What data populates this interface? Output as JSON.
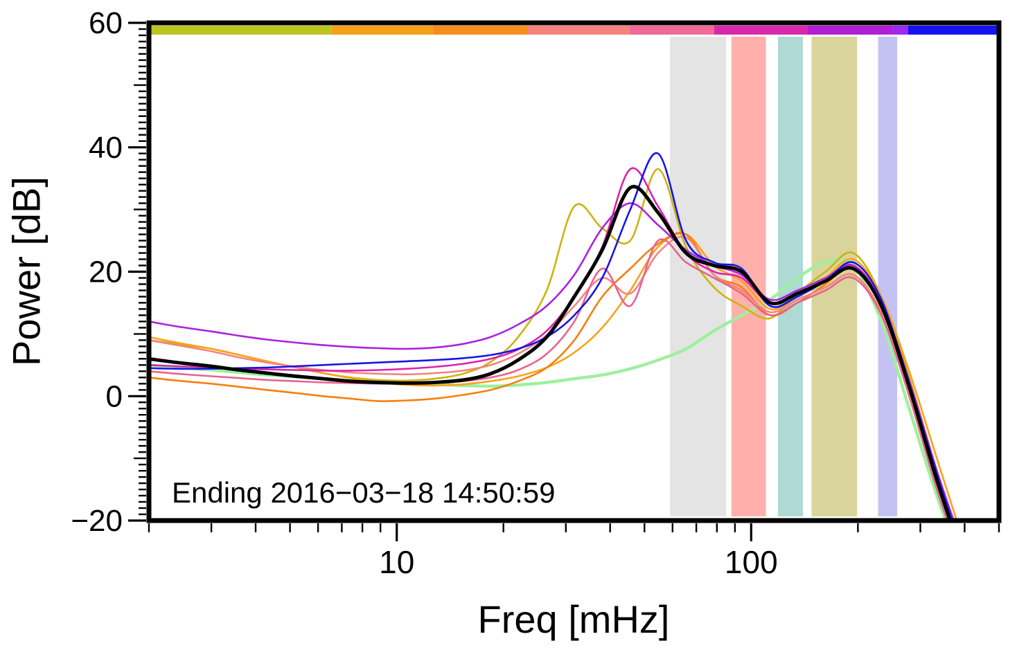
{
  "chart_data": {
    "type": "line",
    "title": "",
    "xlabel": "Freq [mHz]",
    "ylabel": "Power [dB]",
    "annotation": "Ending 2016−03−18 14:50:59",
    "x_scale": "log",
    "xlim": [
      2,
      500
    ],
    "ylim": [
      -20,
      60
    ],
    "x_major_ticks": [
      10,
      100
    ],
    "x_major_tick_labels": [
      "10",
      "100"
    ],
    "x_minor_ticks": [
      2,
      3,
      4,
      5,
      6,
      7,
      8,
      9,
      20,
      30,
      40,
      50,
      60,
      70,
      80,
      90,
      200,
      300,
      400,
      500
    ],
    "y_major_ticks": [
      -20,
      0,
      20,
      40,
      60
    ],
    "y_major_tick_labels": [
      "−20",
      "0",
      "20",
      "40",
      "60"
    ],
    "y_minor_step": 1,
    "y_medium_step": 10,
    "y_major_step": 20,
    "frame_color": "#000000",
    "x": [
      2.0,
      2.4,
      3.0,
      3.6,
      4.3,
      5.2,
      6.2,
      7.4,
      8.9,
      10.7,
      12.8,
      15.4,
      18.4,
      22.0,
      26.5,
      31.7,
      38.0,
      45.6,
      54.6,
      65.5,
      78.5,
      94.0,
      113,
      135,
      162,
      194,
      233,
      279,
      334,
      400
    ],
    "series": [
      {
        "name": "spectrum-green",
        "color": "#9ef09e",
        "width": 4.5,
        "values": [
          5.0,
          4.6,
          4.2,
          3.8,
          3.4,
          3.1,
          2.8,
          2.5,
          2.3,
          2.1,
          1.9,
          1.7,
          1.6,
          1.8,
          2.2,
          2.8,
          3.4,
          4.4,
          5.8,
          7.6,
          10.5,
          13.0,
          15.5,
          19.0,
          21.5,
          21.0,
          12.0,
          -2.0,
          -16.0,
          -28.0
        ]
      },
      {
        "name": "spectrum-olive",
        "color": "#c9b50e",
        "width": 2.6,
        "values": [
          9.0,
          8.4,
          7.6,
          6.6,
          5.6,
          4.6,
          3.7,
          3.0,
          2.6,
          2.5,
          2.8,
          3.6,
          5.5,
          9.5,
          17.0,
          30.5,
          27.0,
          25.0,
          36.5,
          24.0,
          17.5,
          14.5,
          12.5,
          16.5,
          20.0,
          23.0,
          16.0,
          3.0,
          -12.0,
          -26.0
        ]
      },
      {
        "name": "spectrum-orange",
        "color": "#f9a11b",
        "width": 2.6,
        "values": [
          9.5,
          8.6,
          7.6,
          6.6,
          5.6,
          4.6,
          3.7,
          2.9,
          2.2,
          1.8,
          1.7,
          1.9,
          2.4,
          3.2,
          4.6,
          7.0,
          11.0,
          17.0,
          24.0,
          26.0,
          21.0,
          18.5,
          14.0,
          16.0,
          19.0,
          22.0,
          16.0,
          4.0,
          -10.0,
          -24.0
        ]
      },
      {
        "name": "spectrum-dark-orange",
        "color": "#f67f0c",
        "width": 2.6,
        "values": [
          3.0,
          2.5,
          2.0,
          1.5,
          1.0,
          0.5,
          0.0,
          -0.4,
          -0.8,
          -0.7,
          -0.4,
          0.2,
          1.0,
          2.4,
          4.6,
          9.0,
          16.0,
          20.5,
          24.5,
          26.0,
          19.5,
          17.5,
          13.0,
          15.0,
          18.0,
          21.0,
          15.0,
          2.0,
          -13.0,
          -26.0
        ]
      },
      {
        "name": "spectrum-salmon",
        "color": "#f4837d",
        "width": 2.6,
        "values": [
          9.0,
          8.2,
          7.2,
          6.2,
          5.4,
          4.7,
          4.2,
          3.8,
          3.6,
          3.5,
          3.7,
          4.1,
          5.0,
          6.8,
          9.8,
          14.5,
          19.0,
          16.5,
          23.0,
          25.5,
          19.5,
          17.0,
          13.5,
          15.5,
          17.5,
          19.5,
          13.5,
          1.0,
          -14.0,
          -27.0
        ]
      },
      {
        "name": "spectrum-rose",
        "color": "#e8638c",
        "width": 2.6,
        "values": [
          4.0,
          3.6,
          3.2,
          2.9,
          2.6,
          2.4,
          2.2,
          2.1,
          2.0,
          2.0,
          2.1,
          2.4,
          3.0,
          4.2,
          6.8,
          12.0,
          20.5,
          14.5,
          25.0,
          21.5,
          19.0,
          16.5,
          13.0,
          15.0,
          17.0,
          19.0,
          13.0,
          0.0,
          -15.0,
          -28.0
        ]
      },
      {
        "name": "spectrum-magenta",
        "color": "#dd22aa",
        "width": 2.6,
        "values": [
          5.0,
          4.8,
          4.6,
          4.4,
          4.3,
          4.2,
          4.1,
          4.1,
          4.2,
          4.4,
          4.7,
          5.2,
          6.0,
          7.5,
          10.5,
          16.0,
          24.0,
          36.5,
          30.5,
          23.0,
          20.0,
          19.0,
          15.0,
          16.5,
          18.5,
          21.0,
          14.5,
          1.5,
          -13.0,
          -26.0
        ]
      },
      {
        "name": "spectrum-purple",
        "color": "#aa22dd",
        "width": 2.6,
        "values": [
          12.0,
          11.2,
          10.4,
          9.7,
          9.1,
          8.6,
          8.2,
          7.9,
          7.7,
          7.6,
          7.8,
          8.4,
          9.5,
          11.5,
          14.5,
          19.5,
          27.0,
          31.0,
          27.5,
          23.5,
          21.0,
          19.5,
          15.5,
          17.0,
          19.0,
          21.0,
          15.0,
          2.5,
          -12.0,
          -25.0
        ]
      },
      {
        "name": "spectrum-blue",
        "color": "#1515e6",
        "width": 2.6,
        "values": [
          4.5,
          4.4,
          4.4,
          4.5,
          4.6,
          4.8,
          5.0,
          5.2,
          5.4,
          5.6,
          5.8,
          6.1,
          6.6,
          7.6,
          9.5,
          13.0,
          19.0,
          30.0,
          39.0,
          25.0,
          21.5,
          20.5,
          14.5,
          16.0,
          18.5,
          21.5,
          15.5,
          2.0,
          -12.5,
          -26.0
        ]
      },
      {
        "name": "spectrum-mean-black",
        "color": "#000000",
        "width": 5,
        "values": [
          6.0,
          5.4,
          4.8,
          4.2,
          3.7,
          3.2,
          2.8,
          2.4,
          2.2,
          2.1,
          2.2,
          2.6,
          3.6,
          5.8,
          9.5,
          16.0,
          23.5,
          33.5,
          29.5,
          23.0,
          21.0,
          20.0,
          15.0,
          16.5,
          18.5,
          20.5,
          14.5,
          1.5,
          -13.5,
          -27.0
        ]
      }
    ],
    "bands": [
      {
        "name": "band-gray",
        "color": "#e4e4e4",
        "from": 59,
        "to": 85
      },
      {
        "name": "band-red",
        "color": "#ffb0aa",
        "from": 88,
        "to": 110
      },
      {
        "name": "band-teal",
        "color": "#aed9d5",
        "from": 119,
        "to": 140
      },
      {
        "name": "band-olive",
        "color": "#d9d49b",
        "from": 148,
        "to": 199
      },
      {
        "name": "band-periwinkle",
        "color": "#c3c2f2",
        "from": 228,
        "to": 258
      }
    ],
    "top_strip_segments": [
      {
        "color": "#bcc51f",
        "from": 0.0,
        "to": 0.215
      },
      {
        "color": "#f5a019",
        "from": 0.215,
        "to": 0.335
      },
      {
        "color": "#f78d1e",
        "from": 0.335,
        "to": 0.445
      },
      {
        "color": "#f4837d",
        "from": 0.445,
        "to": 0.565
      },
      {
        "color": "#ef6a97",
        "from": 0.565,
        "to": 0.665
      },
      {
        "color": "#d829ad",
        "from": 0.665,
        "to": 0.775
      },
      {
        "color": "#b01fd4",
        "from": 0.775,
        "to": 0.875
      },
      {
        "color": "#9b2bee",
        "from": 0.875,
        "to": 0.893
      },
      {
        "color": "#1414f0",
        "from": 0.893,
        "to": 1.0
      }
    ]
  }
}
